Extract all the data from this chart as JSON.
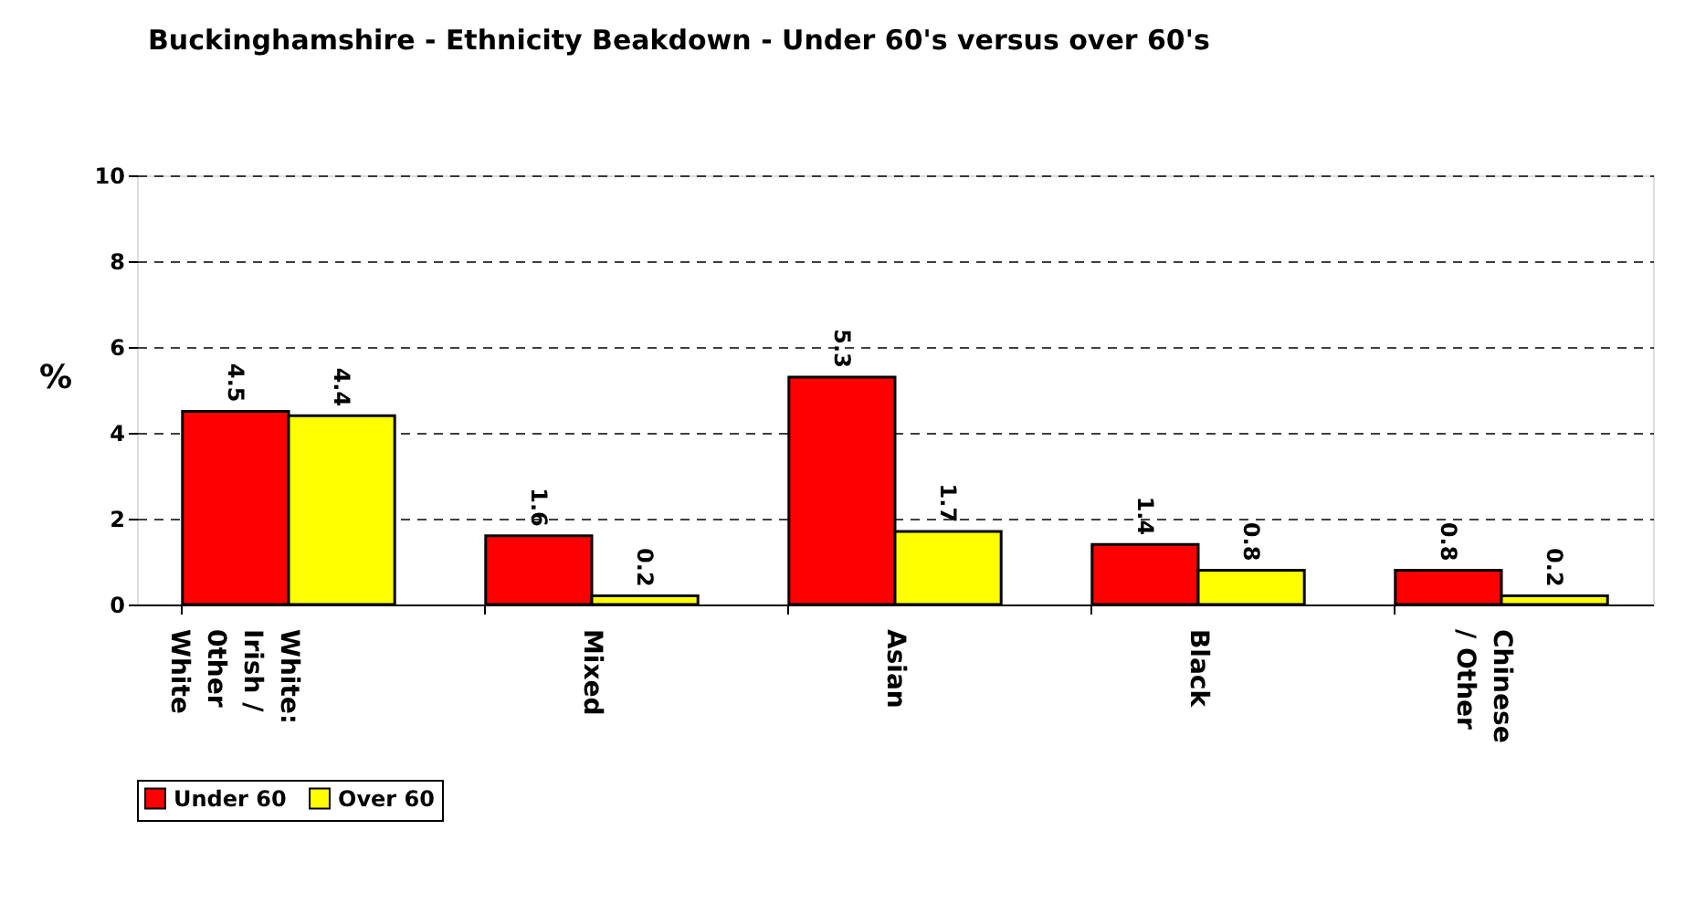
{
  "chart_data": {
    "type": "bar",
    "title": "Buckinghamshire - Ethnicity Beakdown - Under 60's versus over 60's",
    "ylabel": "%",
    "categories": [
      "White: Irish / 0ther White",
      "Mixed",
      "Asian",
      "Black",
      "Chinese / Other"
    ],
    "series": [
      {
        "name": "Under 60",
        "color": "#ff0000",
        "values": [
          4.5,
          1.6,
          5.3,
          1.4,
          0.8
        ]
      },
      {
        "name": "Over 60",
        "color": "#ffff00",
        "values": [
          4.4,
          0.2,
          1.7,
          0.8,
          0.2
        ]
      }
    ],
    "ylim": [
      0,
      10
    ],
    "yticks": [
      0,
      2,
      4,
      6,
      8,
      10
    ],
    "grid": "y",
    "legend": "bottom",
    "data_labels": true
  }
}
